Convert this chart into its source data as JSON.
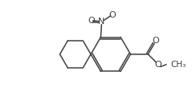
{
  "bg_color": "#ffffff",
  "line_color": "#404040",
  "line_width": 1.1,
  "figsize": [
    2.39,
    1.24
  ],
  "dpi": 100,
  "xlim": [
    0.0,
    2.39
  ],
  "ylim": [
    0.0,
    1.24
  ]
}
